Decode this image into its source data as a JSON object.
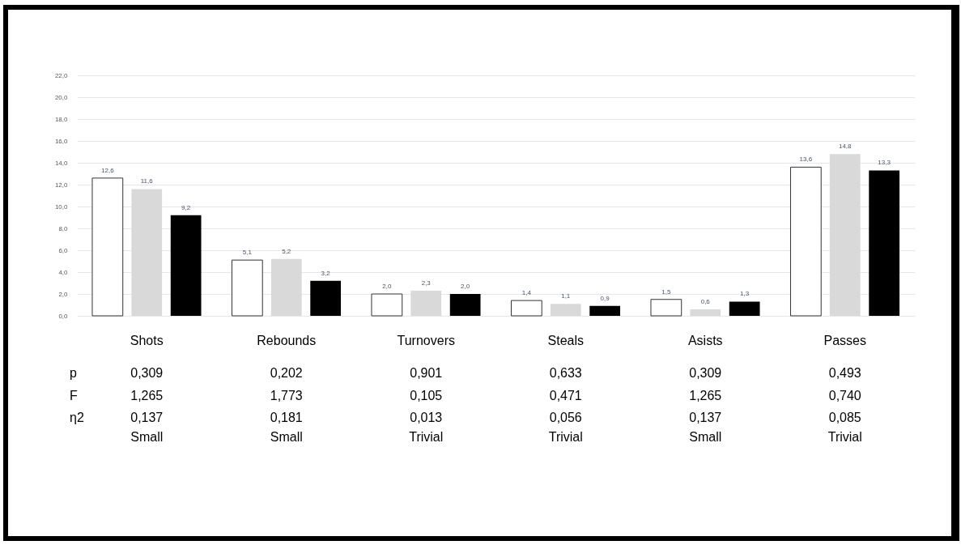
{
  "chart_data": {
    "type": "bar",
    "categories": [
      "Shots",
      "Rebounds",
      "Turnovers",
      "Steals",
      "Asists",
      "Passes"
    ],
    "series": [
      {
        "color": "#ffffff",
        "values": [
          12.6,
          5.1,
          2.0,
          1.4,
          1.5,
          13.6
        ],
        "value_labels": [
          "12,6",
          "5,1",
          "2,0",
          "1,4",
          "1,5",
          "13,6"
        ]
      },
      {
        "color": "#d9d9d9",
        "values": [
          11.6,
          5.2,
          2.3,
          1.1,
          0.6,
          14.8
        ],
        "value_labels": [
          "11,6",
          "5,2",
          "2,3",
          "1,1",
          "0,6",
          "14,8"
        ]
      },
      {
        "color": "#000000",
        "values": [
          9.2,
          3.2,
          2.0,
          0.9,
          1.3,
          13.3
        ],
        "value_labels": [
          "9,2",
          "3,2",
          "2,0",
          "0,9",
          "1,3",
          "13,3"
        ]
      }
    ],
    "ylim": [
      0,
      22
    ],
    "yticks": [
      {
        "value": 0,
        "label": "0,0"
      },
      {
        "value": 2,
        "label": "2,0"
      },
      {
        "value": 4,
        "label": "4,0"
      },
      {
        "value": 6,
        "label": "6,0"
      },
      {
        "value": 8,
        "label": "8,0"
      },
      {
        "value": 10,
        "label": "10,0"
      },
      {
        "value": 12,
        "label": "12,0"
      },
      {
        "value": 14,
        "label": "14,0"
      },
      {
        "value": 16,
        "label": "16,0"
      },
      {
        "value": 18,
        "label": "18,0"
      },
      {
        "value": 20,
        "label": "20,0"
      },
      {
        "value": 22,
        "label": "22,0"
      }
    ],
    "grid": "y",
    "legend": false,
    "annotations": [
      "p",
      "0,309",
      "0,202",
      "0,901",
      "0,633",
      "0,309",
      "0,493",
      "F",
      "1,265",
      "1,773",
      "0,105",
      "0,471",
      "1,265",
      "0,740",
      "η2",
      "0,137",
      "0,181",
      "0,013",
      "0,056",
      "0,137",
      "0,085",
      "Small",
      "Small",
      "Trivial",
      "Trivial",
      "Small",
      "Trivial"
    ]
  }
}
